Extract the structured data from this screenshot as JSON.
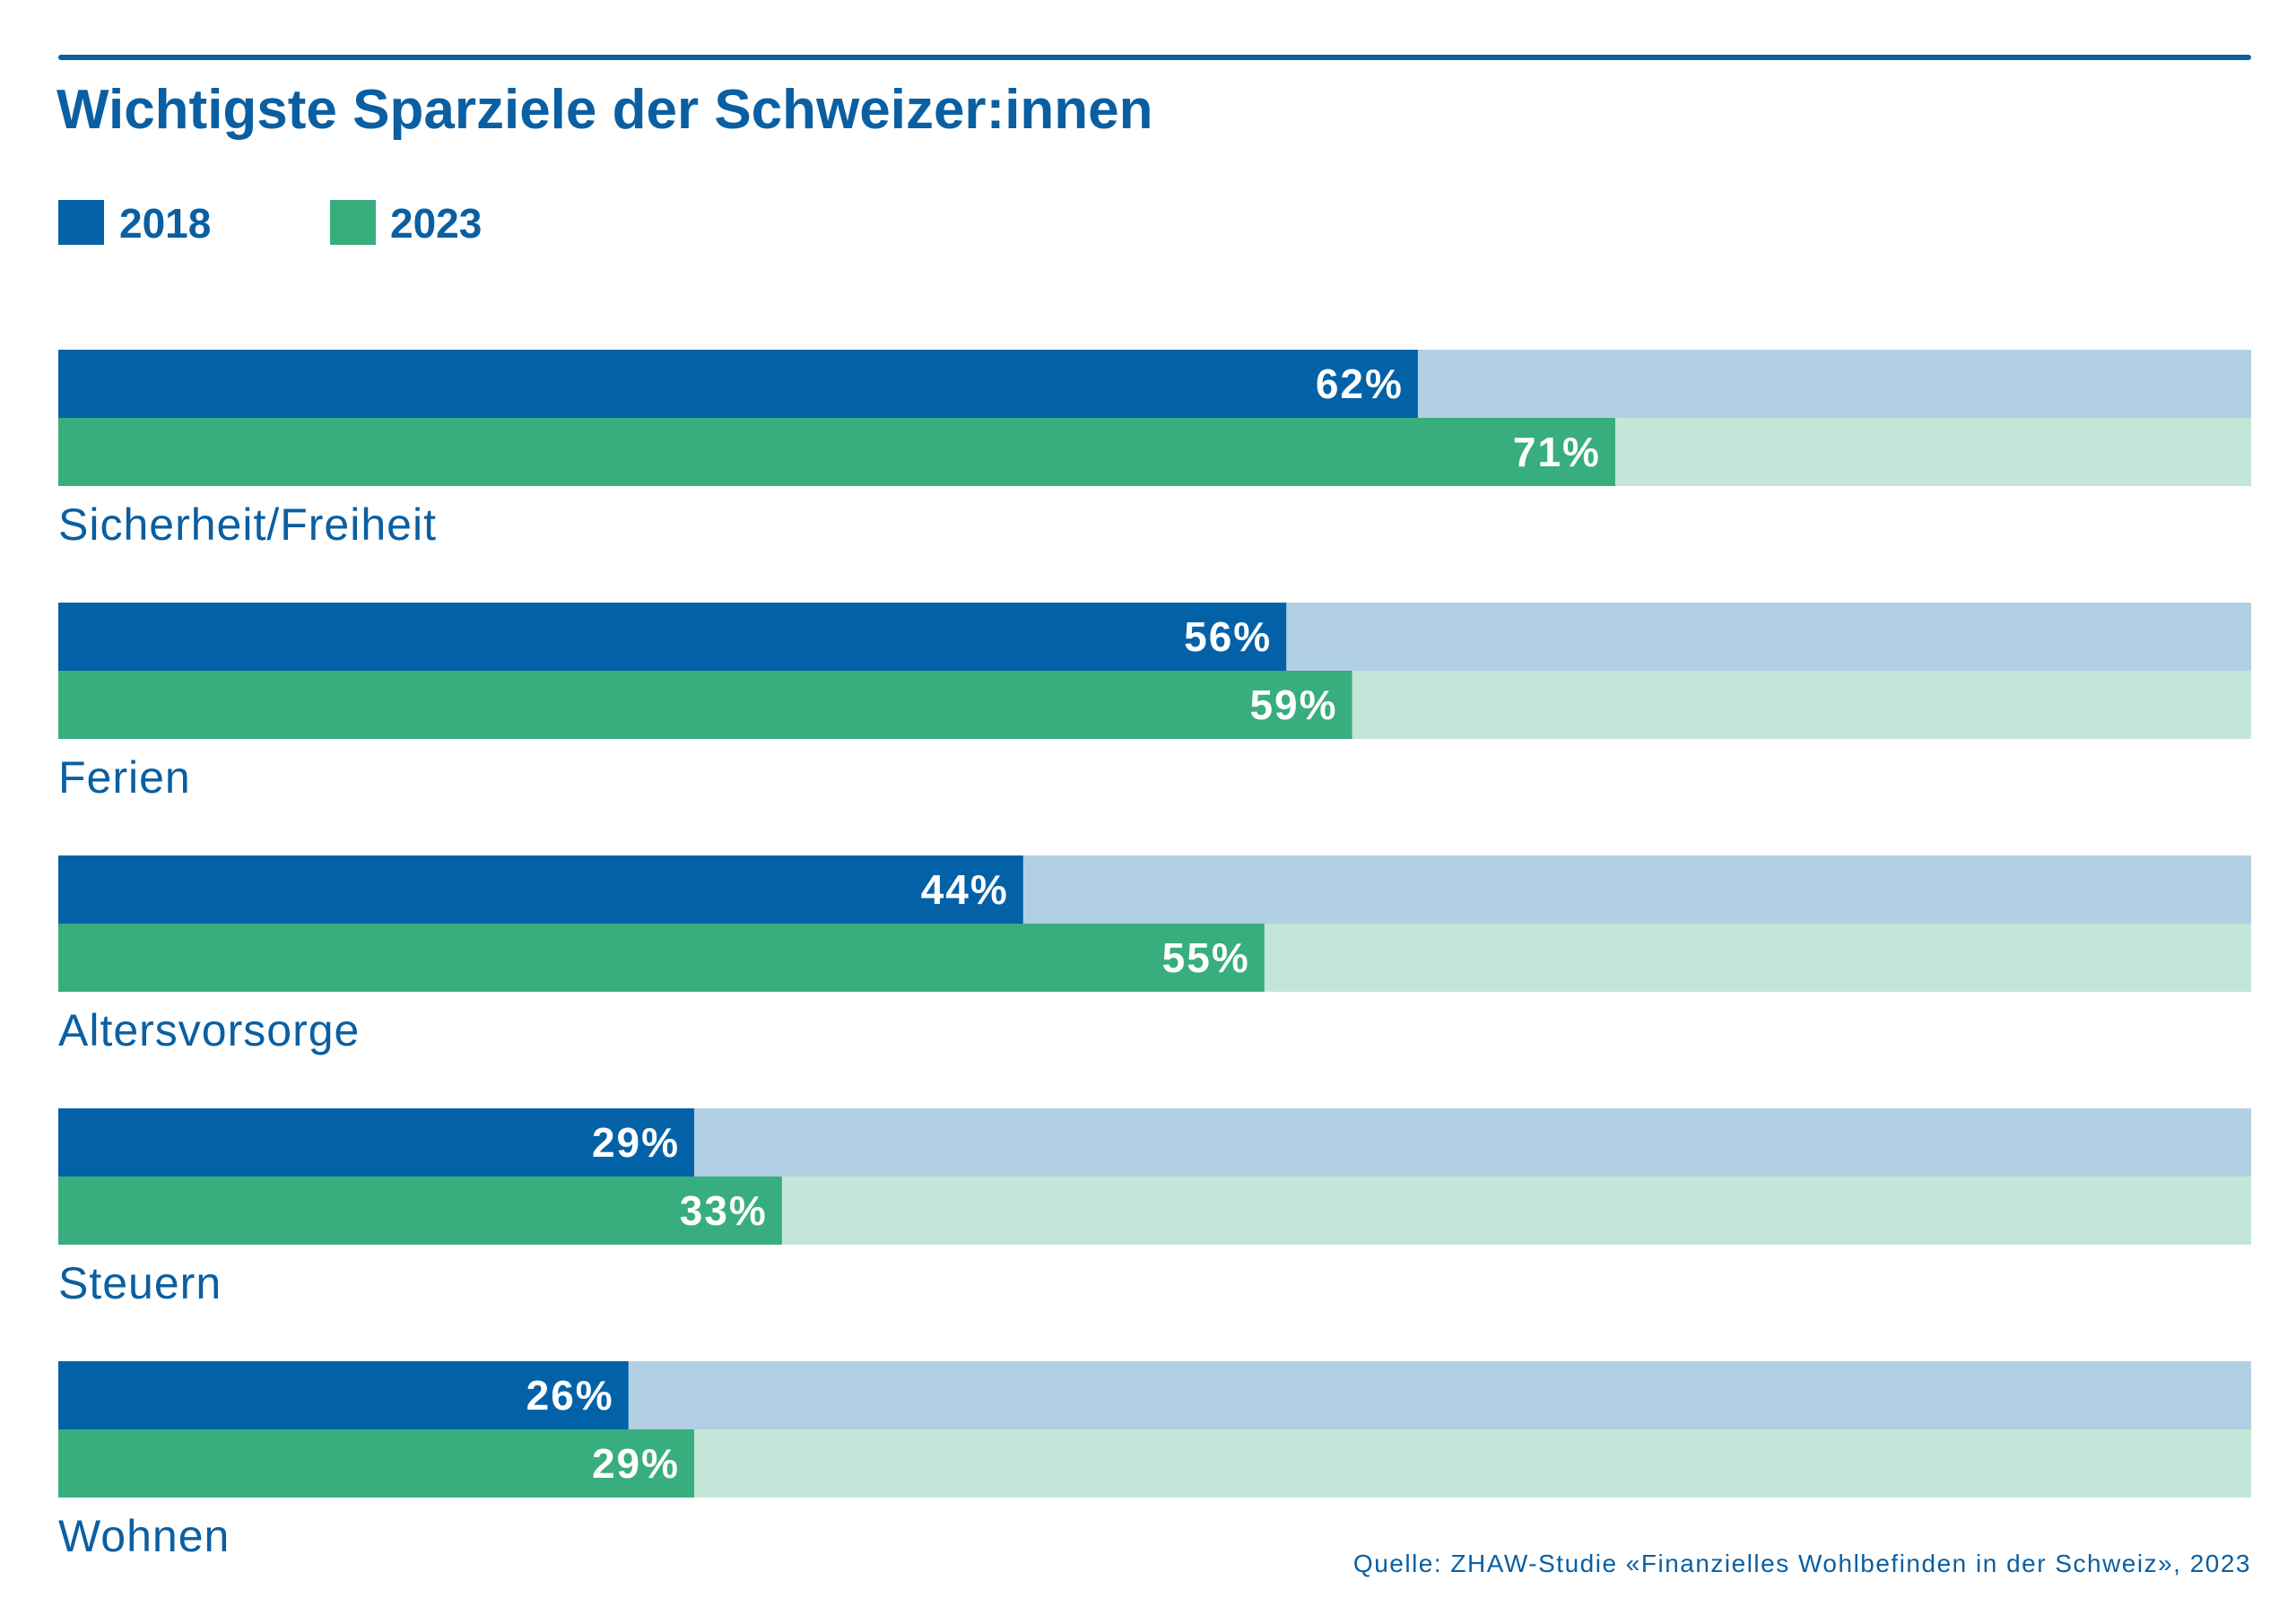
{
  "colors": {
    "text": "#0a5fa2",
    "rule": "#0a5fa2",
    "series_2018": "#0362a7",
    "series_2018_track": "#b2d0e3",
    "series_2023": "#38ad7e",
    "series_2023_track": "#c4e6d9",
    "value_label": "#ffffff"
  },
  "chart_data": {
    "type": "bar",
    "orientation": "horizontal",
    "title": "Wichtigste Sparziele der Schweizer:innen",
    "categories": [
      "Sicherheit/Freiheit",
      "Ferien",
      "Altersvorsorge",
      "Steuern",
      "Wohnen"
    ],
    "series": [
      {
        "name": "2018",
        "values": [
          62,
          56,
          44,
          29,
          26
        ],
        "labels": [
          "62%",
          "56%",
          "44%",
          "29%",
          "26%"
        ]
      },
      {
        "name": "2023",
        "values": [
          71,
          59,
          55,
          33,
          29
        ],
        "labels": [
          "71%",
          "59%",
          "55%",
          "33%",
          "29%"
        ]
      }
    ],
    "xlim": [
      0,
      100
    ],
    "unit": "%",
    "grid": false,
    "legend": "top-left",
    "source": "Quelle: ZHAW-Studie «Finanzielles Wohlbefinden in der Schweiz», 2023"
  }
}
